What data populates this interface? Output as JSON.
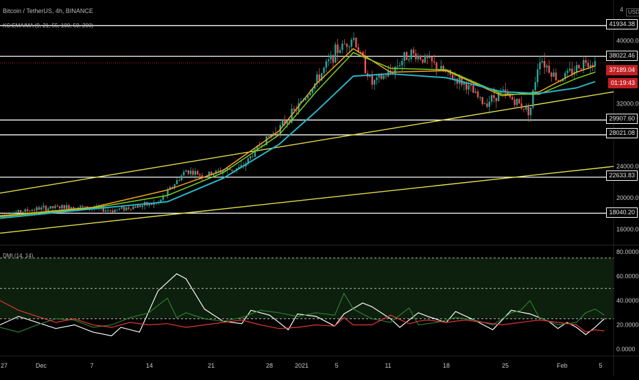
{
  "header": {
    "symbol": "Bitcoin / TetherUS, 4h, BINANCE",
    "indicator": "KC:EMA/MA (9, 21, 55, 100, 50, 200)",
    "dmi_label": "DMI (14, 14)",
    "currency": "USDT",
    "scale_top": "4"
  },
  "colors": {
    "background": "#000000",
    "up_candle": "#26a69a",
    "down_candle": "#ef5350",
    "ema_fast": "#f5a623",
    "ema_mid": "#7ed321",
    "ema_slow": "#29b6c8",
    "trendline": "#e8e04a",
    "hline": "#ffffff",
    "adx": "#ffffff",
    "di_plus": "#2e7d32",
    "di_minus": "#e53935"
  },
  "price_axis": {
    "ticks": [
      "40000.00",
      "32000.00",
      "24000.00",
      "20000.00",
      "16000.00"
    ],
    "horizontal_levels": [
      "41934.38",
      "38022.46",
      "29907.60",
      "28021.08",
      "22633.83",
      "18040.20"
    ],
    "last_price": "37189.04",
    "countdown": "01:19:43"
  },
  "dmi_axis": {
    "ticks": [
      "80.0000",
      "60.0000",
      "40.0000",
      "20.0000",
      "0.0000"
    ]
  },
  "time_axis": {
    "labels": [
      "27",
      "Dec",
      "7",
      "14",
      "21",
      "28",
      "2021",
      "5",
      "11",
      "18",
      "25",
      "Feb",
      "5"
    ]
  },
  "chart_data": [
    {
      "type": "candlestick",
      "title": "Bitcoin / TetherUS, 4h, BINANCE",
      "ylim": [
        14500,
        44500
      ],
      "x": [
        "27",
        "Dec",
        "7",
        "14",
        "21",
        "28",
        "2021",
        "5",
        "11",
        "18",
        "25",
        "Feb",
        "5"
      ],
      "close_path": [
        [
          0,
          17800
        ],
        [
          4,
          18600
        ],
        [
          8,
          18900
        ],
        [
          12,
          18400
        ],
        [
          14,
          18800
        ],
        [
          17,
          19300
        ],
        [
          20,
          23500
        ],
        [
          22,
          22800
        ],
        [
          24,
          23500
        ],
        [
          26,
          23800
        ],
        [
          28,
          26800
        ],
        [
          30,
          28800
        ],
        [
          32,
          31500
        ],
        [
          34,
          34800
        ],
        [
          36,
          38500
        ],
        [
          38,
          40500
        ],
        [
          40,
          34500
        ],
        [
          42,
          36000
        ],
        [
          44,
          38500
        ],
        [
          46,
          37500
        ],
        [
          48,
          35800
        ],
        [
          50,
          34500
        ],
        [
          52,
          32000
        ],
        [
          54,
          33500
        ],
        [
          56,
          31800
        ],
        [
          57,
          31000
        ],
        [
          58,
          38000
        ],
        [
          60,
          35000
        ],
        [
          62,
          36500
        ],
        [
          63,
          37500
        ],
        [
          64,
          37189
        ]
      ],
      "emas": [
        {
          "name": "EMA 9",
          "values": [
            [
              0,
              17700
            ],
            [
              10,
              18800
            ],
            [
              18,
              21000
            ],
            [
              24,
              23500
            ],
            [
              30,
              28500
            ],
            [
              34,
              34500
            ],
            [
              38,
              39000
            ],
            [
              42,
              36000
            ],
            [
              48,
              36200
            ],
            [
              54,
              33000
            ],
            [
              58,
              33500
            ],
            [
              62,
              36000
            ],
            [
              64,
              36800
            ]
          ]
        },
        {
          "name": "EMA 21",
          "values": [
            [
              0,
              17600
            ],
            [
              10,
              18700
            ],
            [
              18,
              20300
            ],
            [
              24,
              23200
            ],
            [
              30,
              28000
            ],
            [
              34,
              33500
            ],
            [
              38,
              38500
            ],
            [
              42,
              36500
            ],
            [
              48,
              36300
            ],
            [
              54,
              33200
            ],
            [
              58,
              33200
            ],
            [
              62,
              35200
            ],
            [
              64,
              36000
            ]
          ]
        },
        {
          "name": "EMA 55",
          "values": [
            [
              0,
              17400
            ],
            [
              10,
              18600
            ],
            [
              18,
              19500
            ],
            [
              24,
              22500
            ],
            [
              30,
              26800
            ],
            [
              34,
              31000
            ],
            [
              38,
              35500
            ],
            [
              42,
              35800
            ],
            [
              48,
              35300
            ],
            [
              54,
              33500
            ],
            [
              58,
              33300
            ],
            [
              62,
              34000
            ],
            [
              64,
              34800
            ]
          ]
        }
      ],
      "horizontal_levels": [
        41934.38,
        38022.46,
        29907.6,
        28021.08,
        22633.83,
        18040.2
      ],
      "trendlines": [
        {
          "from": [
            0,
            20600
          ],
          "to": [
            66,
            33500
          ]
        },
        {
          "from": [
            0,
            15500
          ],
          "to": [
            66,
            24000
          ]
        }
      ],
      "last_price": 37189.04
    },
    {
      "type": "line",
      "title": "DMI (14, 14)",
      "ylim": [
        0,
        80
      ],
      "levels": [
        75,
        50,
        25
      ],
      "series": [
        {
          "name": "ADX",
          "values": [
            [
              0,
              20
            ],
            [
              2,
              27
            ],
            [
              4,
              22
            ],
            [
              6,
              17
            ],
            [
              8,
              20
            ],
            [
              10,
              14
            ],
            [
              12,
              11
            ],
            [
              13,
              18
            ],
            [
              15,
              14
            ],
            [
              17,
              48
            ],
            [
              19,
              62
            ],
            [
              20,
              58
            ],
            [
              22,
              33
            ],
            [
              24,
              23
            ],
            [
              26,
              21
            ],
            [
              27,
              32
            ],
            [
              29,
              28
            ],
            [
              31,
              16
            ],
            [
              32,
              29
            ],
            [
              34,
              27
            ],
            [
              36,
              19
            ],
            [
              37,
              29
            ],
            [
              39,
              38
            ],
            [
              40,
              35
            ],
            [
              42,
              25
            ],
            [
              43,
              18
            ],
            [
              45,
              30
            ],
            [
              46,
              27
            ],
            [
              48,
              22
            ],
            [
              49,
              31
            ],
            [
              51,
              24
            ],
            [
              53,
              16
            ],
            [
              55,
              32
            ],
            [
              57,
              29
            ],
            [
              59,
              23
            ],
            [
              60,
              17
            ],
            [
              61,
              22
            ],
            [
              62,
              18
            ],
            [
              63,
              12
            ],
            [
              64,
              18
            ],
            [
              65,
              25
            ]
          ]
        },
        {
          "name": "DI+",
          "values": [
            [
              0,
              18
            ],
            [
              2,
              14
            ],
            [
              4,
              20
            ],
            [
              6,
              25
            ],
            [
              8,
              24
            ],
            [
              10,
              18
            ],
            [
              12,
              20
            ],
            [
              14,
              26
            ],
            [
              16,
              30
            ],
            [
              18,
              42
            ],
            [
              19,
              26
            ],
            [
              20,
              30
            ],
            [
              22,
              25
            ],
            [
              24,
              23
            ],
            [
              26,
              26
            ],
            [
              28,
              32
            ],
            [
              30,
              30
            ],
            [
              32,
              27
            ],
            [
              34,
              30
            ],
            [
              36,
              28
            ],
            [
              37,
              46
            ],
            [
              38,
              33
            ],
            [
              40,
              25
            ],
            [
              42,
              22
            ],
            [
              44,
              34
            ],
            [
              45,
              20
            ],
            [
              47,
              22
            ],
            [
              49,
              26
            ],
            [
              51,
              24
            ],
            [
              53,
              20
            ],
            [
              55,
              30
            ],
            [
              56,
              32
            ],
            [
              57,
              40
            ],
            [
              58,
              26
            ],
            [
              60,
              20
            ],
            [
              62,
              22
            ],
            [
              63,
              30
            ],
            [
              64,
              33
            ],
            [
              65,
              28
            ]
          ]
        },
        {
          "name": "DI-",
          "values": [
            [
              0,
              40
            ],
            [
              2,
              32
            ],
            [
              4,
              27
            ],
            [
              6,
              22
            ],
            [
              8,
              25
            ],
            [
              10,
              20
            ],
            [
              12,
              18
            ],
            [
              14,
              22
            ],
            [
              16,
              20
            ],
            [
              18,
              21
            ],
            [
              20,
              18
            ],
            [
              22,
              20
            ],
            [
              24,
              22
            ],
            [
              26,
              24
            ],
            [
              28,
              20
            ],
            [
              30,
              17
            ],
            [
              32,
              18
            ],
            [
              34,
              20
            ],
            [
              36,
              19
            ],
            [
              37,
              26
            ],
            [
              38,
              20
            ],
            [
              40,
              20
            ],
            [
              42,
              28
            ],
            [
              44,
              21
            ],
            [
              45,
              23
            ],
            [
              46,
              24
            ],
            [
              48,
              22
            ],
            [
              50,
              24
            ],
            [
              52,
              22
            ],
            [
              54,
              20
            ],
            [
              56,
              22
            ],
            [
              58,
              24
            ],
            [
              60,
              22
            ],
            [
              62,
              20
            ],
            [
              63,
              14
            ],
            [
              64,
              16
            ],
            [
              65,
              15
            ]
          ]
        }
      ]
    }
  ]
}
